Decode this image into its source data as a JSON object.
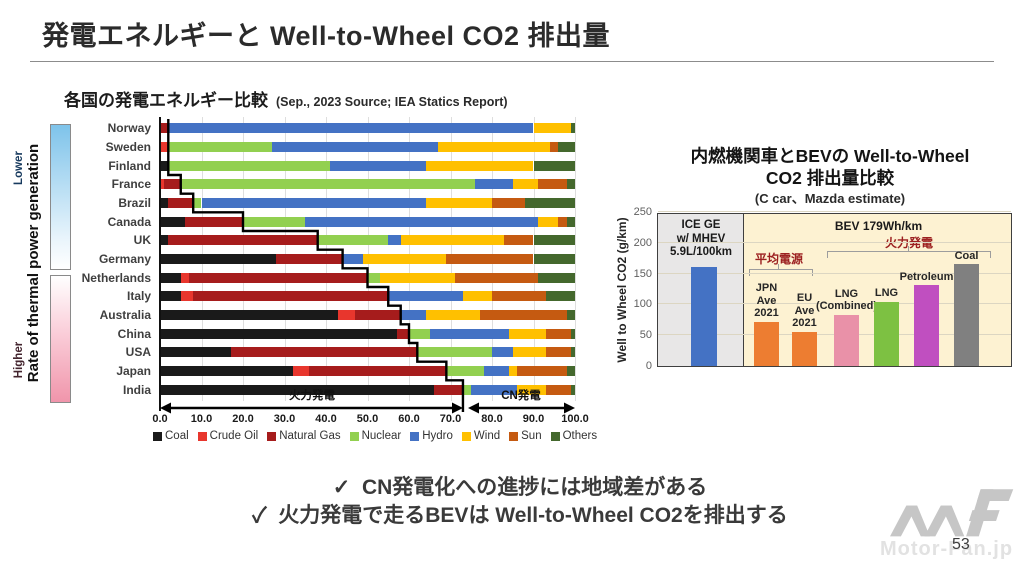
{
  "slide": {
    "title": "発電エネルギーと Well-to-Wheel CO2 排出量",
    "page_number": "53",
    "logo_text": "Motor-Fan.jp"
  },
  "bullet_check": "✓",
  "bullets": [
    "CN発電化への進捗には地域差がある",
    "火力発電で走るBEVは Well-to-Wheel CO2を排出する"
  ],
  "left_chart": {
    "title": "各国の発電エネルギー比較",
    "subtitle": "(Sep., 2023   Source; IEA Statics Report)",
    "y_axis_label": "Rate of thermal power generation",
    "lower_label": "Lower",
    "higher_label": "Higher",
    "thermal_arrow_label": "火力発電",
    "cn_arrow_label": "CN発電"
  },
  "right_chart": {
    "title_line1": "内燃機関車とBEVの Well-to-Wheel",
    "title_line2": "CO2 排出量比較",
    "subtitle": "(C car、Mazda estimate)",
    "y_axis_label": "Well to Wheel CO2 (g/km)",
    "bev_header": "BEV 179Wh/km",
    "avg_label": "平均電源",
    "thermal_label": "火力発電",
    "bar_label_lines": [
      [
        "ICE GE",
        "w/ MHEV",
        "5.9L/100km"
      ],
      [
        "JPN",
        "Ave",
        "2021"
      ],
      [
        "EU",
        "Ave",
        "2021"
      ],
      [
        "LNG",
        "(Combined)"
      ],
      [
        "LNG"
      ],
      [
        "Petroleum"
      ],
      [
        "Coal"
      ]
    ],
    "accent_red": "#9c2020"
  },
  "chart_data": [
    {
      "type": "bar",
      "stacked": true,
      "orientation": "horizontal",
      "title": "各国の発電エネルギー比較 (Sep., 2023 Source; IEA Statics Report)",
      "xlim": [
        0,
        100
      ],
      "x_ticks": [
        "0.0",
        "10.0",
        "20.0",
        "30.0",
        "40.0",
        "50.0",
        "60.0",
        "70.0",
        "80.0",
        "90.0",
        "100.0"
      ],
      "grid": true,
      "legend_position": "bottom",
      "categories": [
        "Norway",
        "Sweden",
        "Finland",
        "France",
        "Brazil",
        "Canada",
        "UK",
        "Germany",
        "Netherlands",
        "Italy",
        "Australia",
        "China",
        "USA",
        "Japan",
        "India"
      ],
      "series": [
        {
          "name": "Coal",
          "color": "#1a1a1a",
          "values": [
            0,
            0,
            2,
            0,
            2,
            6,
            2,
            28,
            5,
            5,
            43,
            57,
            17,
            32,
            66
          ]
        },
        {
          "name": "Crude Oil",
          "color": "#e8362d",
          "values": [
            0,
            2,
            0,
            1,
            0,
            0,
            0,
            0,
            2,
            3,
            4,
            0,
            0,
            4,
            0
          ]
        },
        {
          "name": "Natural Gas",
          "color": "#a61c1c",
          "values": [
            2,
            0,
            0,
            4,
            6,
            14,
            36,
            16,
            43,
            47,
            11,
            3,
            45,
            33,
            7
          ]
        },
        {
          "name": "Nuclear",
          "color": "#92d050",
          "values": [
            0,
            25,
            39,
            71,
            2,
            15,
            17,
            0,
            3,
            0,
            0,
            5,
            18,
            9,
            2
          ]
        },
        {
          "name": "Hydro",
          "color": "#4472c4",
          "values": [
            88,
            40,
            23,
            9,
            54,
            56,
            3,
            5,
            0,
            18,
            6,
            19,
            5,
            6,
            11
          ]
        },
        {
          "name": "Wind",
          "color": "#ffc000",
          "values": [
            9,
            27,
            26,
            6,
            16,
            5,
            25,
            20,
            18,
            7,
            13,
            9,
            8,
            2,
            7
          ]
        },
        {
          "name": "Sun",
          "color": "#c55a11",
          "values": [
            0,
            2,
            0,
            7,
            8,
            2,
            7,
            21,
            20,
            13,
            21,
            6,
            6,
            12,
            6
          ]
        },
        {
          "name": "Others",
          "color": "#44682d",
          "values": [
            1,
            4,
            10,
            2,
            12,
            2,
            10,
            10,
            9,
            7,
            2,
            1,
            1,
            2,
            1
          ]
        }
      ],
      "thermal_share_step": [
        2,
        2,
        2,
        5,
        8,
        20,
        38,
        44,
        50,
        55,
        58,
        60,
        62,
        69,
        73
      ],
      "annotations": {
        "thermal_span": [
          0,
          73
        ],
        "cn_span": [
          74,
          100
        ]
      }
    },
    {
      "type": "bar",
      "title": "内燃機関車とBEVの Well-to-Wheel CO2 排出量比較",
      "subtitle": "(C car、Mazda estimate)",
      "ylabel": "Well to Wheel CO2 (g/km)",
      "ylim": [
        0,
        250
      ],
      "yticks": [
        0,
        50,
        100,
        150,
        200,
        250
      ],
      "categories": [
        "ICE GE w/ MHEV 5.9L/100km",
        "JPN Ave 2021",
        "EU Ave 2021",
        "LNG (Combined)",
        "LNG",
        "Petroleum",
        "Coal"
      ],
      "values": [
        161,
        72,
        56,
        83,
        104,
        131,
        165
      ],
      "colors": [
        "#4472c4",
        "#ed7d31",
        "#ed7d31",
        "#e991a8",
        "#7dc142",
        "#c04fc0",
        "#808080"
      ]
    }
  ]
}
